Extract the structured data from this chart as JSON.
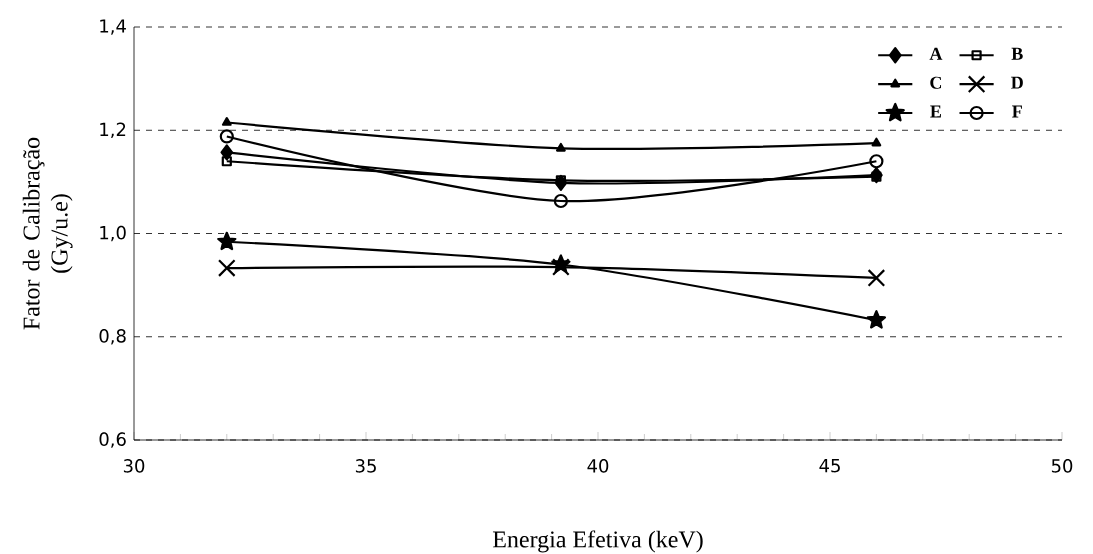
{
  "chart_data": {
    "type": "line",
    "xlabel": "Energia Efetiva (keV)",
    "ylabel": "Fator de Calibração (Gy/u.e)",
    "x": [
      32,
      39.2,
      46
    ],
    "series": [
      {
        "name": "A",
        "color": "#000000",
        "marker": "diamond",
        "values": [
          1.157,
          1.098,
          1.113
        ]
      },
      {
        "name": "B",
        "color": "#000000",
        "marker": "square",
        "values": [
          1.14,
          1.103,
          1.11
        ]
      },
      {
        "name": "C",
        "color": "#000000",
        "marker": "triangle",
        "values": [
          1.215,
          1.165,
          1.175
        ]
      },
      {
        "name": "D",
        "color": "#000000",
        "marker": "cross",
        "values": [
          0.933,
          0.935,
          0.914
        ]
      },
      {
        "name": "E",
        "color": "#000000",
        "marker": "star",
        "values": [
          0.984,
          0.94,
          0.832
        ]
      },
      {
        "name": "F",
        "color": "#000000",
        "marker": "circle",
        "values": [
          1.188,
          1.063,
          1.14
        ]
      }
    ],
    "xlim": [
      30,
      50
    ],
    "xticks": [
      30,
      35,
      40,
      45,
      50
    ],
    "ylim": [
      0.6,
      1.4
    ],
    "yticks": [
      {
        "value": 0.6,
        "label": "0,6"
      },
      {
        "value": 0.8,
        "label": "0,8"
      },
      {
        "value": 1.0,
        "label": "1,0"
      },
      {
        "value": 1.2,
        "label": "1,2"
      },
      {
        "value": 1.4,
        "label": "1,4"
      }
    ],
    "grid": "y",
    "legend": "top right",
    "line_style": "solid"
  }
}
